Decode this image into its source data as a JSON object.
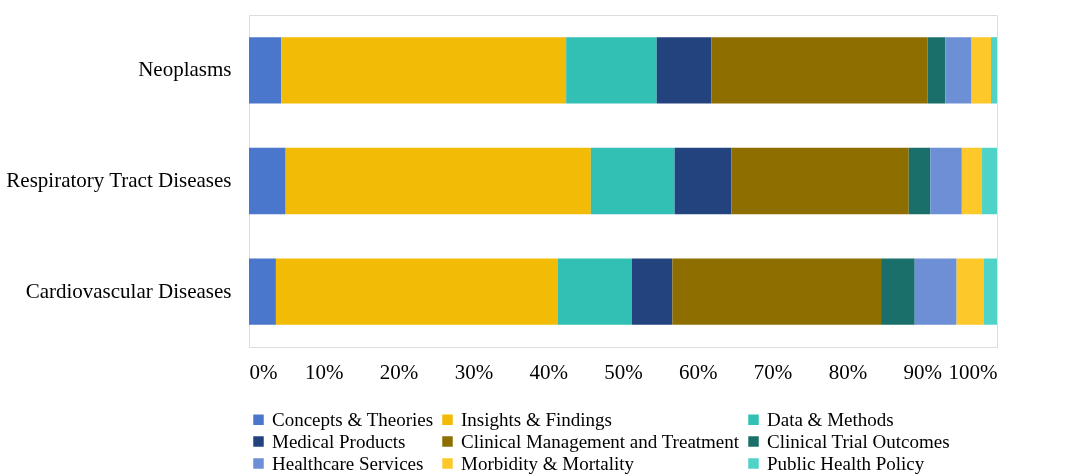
{
  "chart_data": {
    "type": "bar",
    "orientation": "horizontal",
    "stacked": true,
    "categories": [
      "Neoplasms",
      "Respiratory Tract Diseases",
      "Cardiovascular Diseases"
    ],
    "series": [
      {
        "name": "Concepts & Theories",
        "color": "#4a76cc",
        "values": [
          4.3,
          4.9,
          3.6
        ]
      },
      {
        "name": "Insights & Findings",
        "color": "#f2bb05",
        "values": [
          38.1,
          40.8,
          37.7
        ]
      },
      {
        "name": "Data & Methods",
        "color": "#31c0b3",
        "values": [
          12.1,
          11.2,
          9.9
        ]
      },
      {
        "name": "Medical Products",
        "color": "#23437f",
        "values": [
          7.3,
          7.6,
          5.4
        ]
      },
      {
        "name": "Clinical Management and Treatment",
        "color": "#8f6e00",
        "values": [
          28.9,
          23.7,
          27.9
        ]
      },
      {
        "name": "Clinical Trial Outcomes",
        "color": "#1b6f6a",
        "values": [
          2.4,
          2.9,
          4.5
        ]
      },
      {
        "name": "Healthcare Services",
        "color": "#6c8fd6",
        "values": [
          3.5,
          4.2,
          5.6
        ]
      },
      {
        "name": "Morbidity & Mortality",
        "color": "#fdc82a",
        "values": [
          2.6,
          2.7,
          3.6
        ]
      },
      {
        "name": "Public Health Policy",
        "color": "#4fd3c9",
        "values": [
          0.8,
          2.0,
          1.8
        ]
      }
    ],
    "xlim": [
      0,
      100
    ],
    "xticks": [
      {
        "value": 0,
        "label": "0%"
      },
      {
        "value": 10,
        "label": "10%"
      },
      {
        "value": 20,
        "label": "20%"
      },
      {
        "value": 30,
        "label": "30%"
      },
      {
        "value": 40,
        "label": "40%"
      },
      {
        "value": 50,
        "label": "50%"
      },
      {
        "value": 60,
        "label": "60%"
      },
      {
        "value": 70,
        "label": "70%"
      },
      {
        "value": 80,
        "label": "80%"
      },
      {
        "value": 90,
        "label": "90%"
      },
      {
        "value": 100,
        "label": "100%"
      }
    ],
    "grid": false,
    "legend": "bottom"
  }
}
